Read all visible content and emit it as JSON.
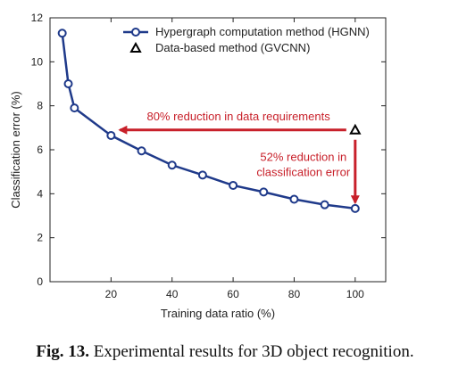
{
  "chart_data": {
    "type": "line",
    "xlabel": "Training data ratio (%)",
    "ylabel": "Classification error (%)",
    "xlim": [
      0,
      110
    ],
    "ylim": [
      0,
      12
    ],
    "xticks": [
      20,
      40,
      60,
      80,
      100
    ],
    "yticks": [
      0,
      2,
      4,
      6,
      8,
      10,
      12
    ],
    "grid": false,
    "legend_position": "top-right",
    "series": [
      {
        "name": "Hypergraph computation method (HGNN)",
        "color": "#1f3a8a",
        "marker": "circle",
        "x": [
          4,
          6,
          8,
          20,
          30,
          40,
          50,
          60,
          70,
          80,
          90,
          100
        ],
        "y": [
          11.3,
          9.0,
          7.9,
          6.65,
          5.95,
          5.3,
          4.85,
          4.38,
          4.08,
          3.75,
          3.5,
          3.33
        ]
      },
      {
        "name": "Data-based method (GVCNN)",
        "color": "#000000",
        "marker": "triangle",
        "x": [
          100
        ],
        "y": [
          6.9
        ]
      }
    ],
    "annotations": [
      {
        "text": "80% reduction in data requirements",
        "color": "#c8202a",
        "from": [
          100,
          6.9
        ],
        "to": [
          20,
          6.9
        ]
      },
      {
        "text_lines": [
          "52% reduction in",
          "classification error"
        ],
        "color": "#c8202a",
        "from": [
          100,
          6.9
        ],
        "to": [
          100,
          3.6
        ]
      }
    ]
  },
  "caption": {
    "label": "Fig. 13.",
    "text": " Experimental results for 3D object recognition."
  }
}
